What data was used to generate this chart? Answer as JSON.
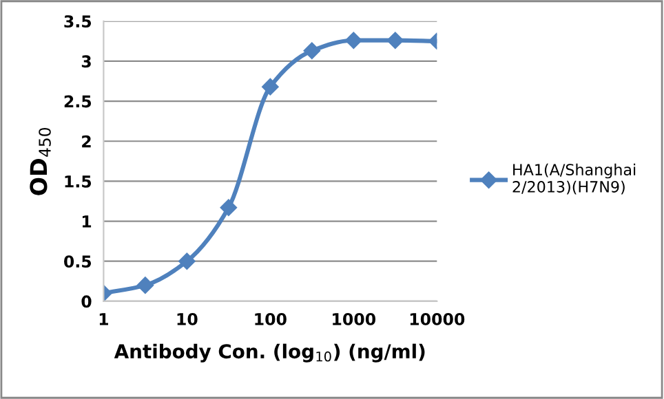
{
  "chart_data": {
    "type": "line",
    "categories": [
      "1",
      null,
      "10",
      null,
      "100",
      null,
      "1000",
      null,
      "10000"
    ],
    "series": [
      {
        "name": "HA1(A/Shanghai 2/2013)(H7N9)",
        "color": "#4f81bd",
        "values": [
          0.1,
          0.2,
          0.5,
          1.17,
          2.68,
          3.13,
          3.26,
          3.26,
          3.25
        ]
      }
    ],
    "xlabel": "Antibody Con. (log$_{10}$) (ng/ml)",
    "ylabel": "OD$_{450}$",
    "ylim": [
      0,
      3.5
    ],
    "yticks": [
      0,
      0.5,
      1,
      1.5,
      2,
      2.5,
      3,
      3.5
    ],
    "grid": "y",
    "legend": "right",
    "marker": "diamond",
    "line_style": "solid"
  }
}
